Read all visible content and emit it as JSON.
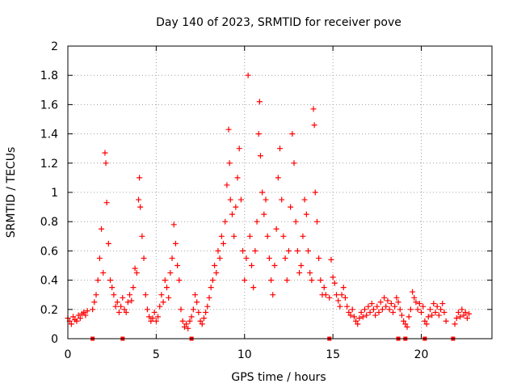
{
  "chart_data": {
    "type": "scatter",
    "title": "Day 140 of 2023, SRMTID for receiver pove",
    "xlabel": "GPS time / hours",
    "ylabel": "SRMTID / TECUs",
    "xlim": [
      0,
      24
    ],
    "ylim": [
      0,
      2
    ],
    "x_ticks": [
      0,
      5,
      10,
      15,
      20
    ],
    "x_tick_labels": [
      "0",
      "5",
      "10",
      "15",
      "20"
    ],
    "y_ticks": [
      0,
      0.2,
      0.4,
      0.6,
      0.8,
      1,
      1.2,
      1.4,
      1.6,
      1.8,
      2
    ],
    "y_tick_labels": [
      "0",
      "0.2",
      "0.4",
      "0.6",
      "0.8",
      "1",
      "1.2",
      "1.4",
      "1.6",
      "1.8",
      "2"
    ],
    "grid": true,
    "marker": "+",
    "color": "#ff0000",
    "series": [
      {
        "name": "SRMTID",
        "points": [
          [
            0.0,
            0.14
          ],
          [
            0.1,
            0.12
          ],
          [
            0.2,
            0.1
          ],
          [
            0.3,
            0.15
          ],
          [
            0.4,
            0.13
          ],
          [
            0.5,
            0.12
          ],
          [
            0.6,
            0.16
          ],
          [
            0.7,
            0.14
          ],
          [
            0.8,
            0.17
          ],
          [
            0.9,
            0.18
          ],
          [
            1.0,
            0.16
          ],
          [
            1.1,
            0.19
          ],
          [
            1.4,
            0.2
          ],
          [
            1.5,
            0.25
          ],
          [
            1.6,
            0.3
          ],
          [
            1.7,
            0.4
          ],
          [
            1.8,
            0.55
          ],
          [
            1.9,
            0.75
          ],
          [
            2.0,
            0.45
          ],
          [
            2.1,
            1.27
          ],
          [
            2.15,
            1.2
          ],
          [
            2.2,
            0.93
          ],
          [
            2.3,
            0.65
          ],
          [
            2.4,
            0.4
          ],
          [
            2.5,
            0.35
          ],
          [
            2.6,
            0.3
          ],
          [
            2.7,
            0.22
          ],
          [
            2.8,
            0.25
          ],
          [
            2.9,
            0.18
          ],
          [
            3.0,
            0.22
          ],
          [
            3.1,
            0.28
          ],
          [
            3.2,
            0.2
          ],
          [
            3.3,
            0.18
          ],
          [
            3.4,
            0.25
          ],
          [
            3.5,
            0.3
          ],
          [
            3.6,
            0.26
          ],
          [
            3.7,
            0.35
          ],
          [
            3.8,
            0.48
          ],
          [
            3.9,
            0.45
          ],
          [
            4.0,
            0.95
          ],
          [
            4.05,
            1.1
          ],
          [
            4.1,
            0.9
          ],
          [
            4.2,
            0.7
          ],
          [
            4.3,
            0.55
          ],
          [
            4.4,
            0.3
          ],
          [
            4.5,
            0.2
          ],
          [
            4.6,
            0.15
          ],
          [
            4.7,
            0.12
          ],
          [
            4.8,
            0.14
          ],
          [
            4.9,
            0.18
          ],
          [
            5.0,
            0.12
          ],
          [
            5.1,
            0.15
          ],
          [
            5.2,
            0.22
          ],
          [
            5.3,
            0.3
          ],
          [
            5.4,
            0.25
          ],
          [
            5.5,
            0.4
          ],
          [
            5.6,
            0.35
          ],
          [
            5.7,
            0.28
          ],
          [
            5.8,
            0.45
          ],
          [
            5.9,
            0.55
          ],
          [
            6.0,
            0.78
          ],
          [
            6.1,
            0.65
          ],
          [
            6.2,
            0.5
          ],
          [
            6.3,
            0.4
          ],
          [
            6.4,
            0.2
          ],
          [
            6.5,
            0.12
          ],
          [
            6.6,
            0.08
          ],
          [
            6.7,
            0.1
          ],
          [
            6.8,
            0.07
          ],
          [
            6.9,
            0.12
          ],
          [
            7.0,
            0.15
          ],
          [
            7.1,
            0.2
          ],
          [
            7.2,
            0.3
          ],
          [
            7.3,
            0.25
          ],
          [
            7.4,
            0.18
          ],
          [
            7.5,
            0.12
          ],
          [
            7.6,
            0.1
          ],
          [
            7.7,
            0.14
          ],
          [
            7.8,
            0.18
          ],
          [
            7.9,
            0.22
          ],
          [
            8.0,
            0.28
          ],
          [
            8.1,
            0.35
          ],
          [
            8.2,
            0.4
          ],
          [
            8.3,
            0.5
          ],
          [
            8.4,
            0.45
          ],
          [
            8.5,
            0.6
          ],
          [
            8.6,
            0.55
          ],
          [
            8.7,
            0.7
          ],
          [
            8.8,
            0.65
          ],
          [
            8.9,
            0.8
          ],
          [
            9.0,
            1.05
          ],
          [
            9.1,
            1.43
          ],
          [
            9.15,
            1.2
          ],
          [
            9.2,
            0.95
          ],
          [
            9.3,
            0.85
          ],
          [
            9.4,
            0.7
          ],
          [
            9.5,
            0.9
          ],
          [
            9.6,
            1.1
          ],
          [
            9.7,
            1.3
          ],
          [
            9.8,
            0.95
          ],
          [
            9.9,
            0.6
          ],
          [
            10.0,
            0.4
          ],
          [
            10.1,
            0.55
          ],
          [
            10.2,
            1.8
          ],
          [
            10.3,
            0.7
          ],
          [
            10.4,
            0.5
          ],
          [
            10.5,
            0.35
          ],
          [
            10.6,
            0.6
          ],
          [
            10.7,
            0.8
          ],
          [
            10.8,
            1.4
          ],
          [
            10.85,
            1.62
          ],
          [
            10.9,
            1.25
          ],
          [
            11.0,
            1.0
          ],
          [
            11.1,
            0.85
          ],
          [
            11.2,
            0.95
          ],
          [
            11.3,
            0.7
          ],
          [
            11.4,
            0.55
          ],
          [
            11.5,
            0.4
          ],
          [
            11.6,
            0.3
          ],
          [
            11.7,
            0.5
          ],
          [
            11.8,
            0.75
          ],
          [
            11.9,
            1.1
          ],
          [
            12.0,
            1.3
          ],
          [
            12.1,
            0.95
          ],
          [
            12.2,
            0.7
          ],
          [
            12.3,
            0.55
          ],
          [
            12.4,
            0.4
          ],
          [
            12.5,
            0.6
          ],
          [
            12.6,
            0.9
          ],
          [
            12.7,
            1.4
          ],
          [
            12.8,
            1.2
          ],
          [
            12.9,
            0.8
          ],
          [
            13.0,
            0.6
          ],
          [
            13.1,
            0.45
          ],
          [
            13.2,
            0.5
          ],
          [
            13.3,
            0.7
          ],
          [
            13.4,
            0.95
          ],
          [
            13.5,
            0.85
          ],
          [
            13.6,
            0.6
          ],
          [
            13.7,
            0.45
          ],
          [
            13.8,
            0.4
          ],
          [
            13.9,
            1.57
          ],
          [
            13.95,
            1.46
          ],
          [
            14.0,
            1.0
          ],
          [
            14.1,
            0.8
          ],
          [
            14.2,
            0.55
          ],
          [
            14.3,
            0.4
          ],
          [
            14.4,
            0.3
          ],
          [
            14.5,
            0.35
          ],
          [
            14.6,
            0.3
          ],
          [
            14.8,
            0.28
          ],
          [
            14.9,
            0.54
          ],
          [
            15.0,
            0.42
          ],
          [
            15.1,
            0.38
          ],
          [
            15.2,
            0.3
          ],
          [
            15.3,
            0.26
          ],
          [
            15.4,
            0.22
          ],
          [
            15.5,
            0.3
          ],
          [
            15.6,
            0.35
          ],
          [
            15.7,
            0.28
          ],
          [
            15.8,
            0.22
          ],
          [
            15.9,
            0.18
          ],
          [
            16.0,
            0.16
          ],
          [
            16.1,
            0.2
          ],
          [
            16.2,
            0.15
          ],
          [
            16.3,
            0.12
          ],
          [
            16.4,
            0.1
          ],
          [
            16.5,
            0.14
          ],
          [
            16.6,
            0.18
          ],
          [
            16.7,
            0.15
          ],
          [
            16.8,
            0.2
          ],
          [
            16.9,
            0.16
          ],
          [
            17.0,
            0.22
          ],
          [
            17.1,
            0.18
          ],
          [
            17.2,
            0.24
          ],
          [
            17.3,
            0.2
          ],
          [
            17.4,
            0.16
          ],
          [
            17.5,
            0.22
          ],
          [
            17.6,
            0.18
          ],
          [
            17.7,
            0.25
          ],
          [
            17.8,
            0.2
          ],
          [
            17.9,
            0.28
          ],
          [
            18.0,
            0.22
          ],
          [
            18.1,
            0.26
          ],
          [
            18.2,
            0.2
          ],
          [
            18.3,
            0.24
          ],
          [
            18.4,
            0.18
          ],
          [
            18.5,
            0.22
          ],
          [
            18.6,
            0.28
          ],
          [
            18.7,
            0.25
          ],
          [
            18.8,
            0.2
          ],
          [
            18.9,
            0.16
          ],
          [
            19.0,
            0.12
          ],
          [
            19.1,
            0.1
          ],
          [
            19.2,
            0.08
          ],
          [
            19.3,
            0.15
          ],
          [
            19.4,
            0.2
          ],
          [
            19.5,
            0.32
          ],
          [
            19.6,
            0.28
          ],
          [
            19.7,
            0.25
          ],
          [
            19.8,
            0.2
          ],
          [
            19.9,
            0.24
          ],
          [
            20.0,
            0.18
          ],
          [
            20.1,
            0.22
          ],
          [
            20.2,
            0.12
          ],
          [
            20.3,
            0.1
          ],
          [
            20.4,
            0.15
          ],
          [
            20.5,
            0.2
          ],
          [
            20.6,
            0.16
          ],
          [
            20.7,
            0.24
          ],
          [
            20.8,
            0.18
          ],
          [
            20.9,
            0.22
          ],
          [
            21.0,
            0.16
          ],
          [
            21.1,
            0.2
          ],
          [
            21.2,
            0.24
          ],
          [
            21.3,
            0.18
          ],
          [
            21.4,
            0.12
          ],
          [
            21.9,
            0.1
          ],
          [
            22.0,
            0.14
          ],
          [
            22.1,
            0.18
          ],
          [
            22.2,
            0.15
          ],
          [
            22.3,
            0.2
          ],
          [
            22.4,
            0.16
          ],
          [
            22.5,
            0.18
          ],
          [
            22.6,
            0.14
          ],
          [
            22.7,
            0.17
          ]
        ]
      }
    ],
    "gap_markers_x": [
      1.4,
      3.1,
      7.0,
      14.8,
      18.7,
      19.1,
      20.2,
      21.8
    ]
  }
}
